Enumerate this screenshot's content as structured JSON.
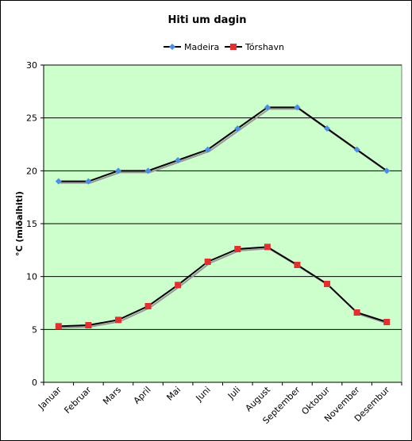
{
  "chart_data": {
    "type": "line",
    "title": "Hiti um dagin",
    "ylabel": "°C (miðalhiti)",
    "xlabel": "",
    "categories": [
      "Januar",
      "Februar",
      "Mars",
      "April",
      "Mai",
      "Juni",
      "Juli",
      "August",
      "September",
      "Oktobur",
      "November",
      "Desembur"
    ],
    "ylim": [
      0,
      30
    ],
    "yticks": [
      0,
      5,
      10,
      15,
      20,
      25,
      30
    ],
    "grid": true,
    "legend": "top-center",
    "series": [
      {
        "name": "Madeira",
        "color": "#4a90e2",
        "marker": "diamond",
        "values": [
          19,
          19,
          20,
          20,
          21,
          22,
          24,
          26,
          26,
          24,
          22,
          20
        ]
      },
      {
        "name": "Tórshavn",
        "color": "#e03030",
        "marker": "square",
        "values": [
          5.3,
          5.4,
          5.9,
          7.2,
          9.2,
          11.4,
          12.6,
          12.8,
          11.1,
          9.3,
          6.6,
          5.7
        ]
      }
    ],
    "colors": {
      "plot_background": "#ccffcc",
      "grid": "#000000",
      "line": "#000000"
    }
  }
}
